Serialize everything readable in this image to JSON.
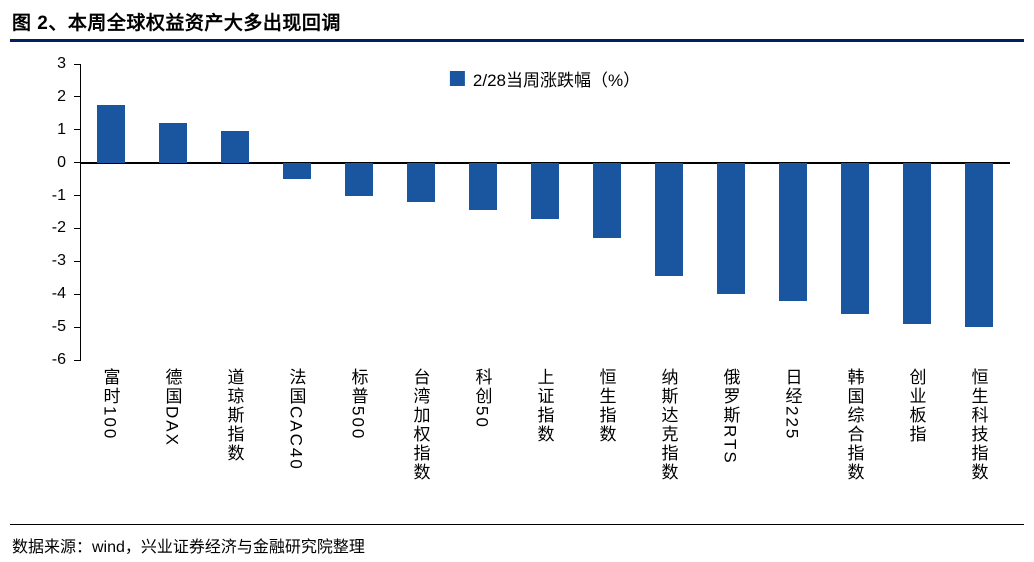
{
  "title": "图 2、本周全球权益资产大多出现回调",
  "footer": "数据来源：wind，兴业证券经济与金融研究院整理",
  "colors": {
    "bar": "#1A56A0",
    "title_rule": "#002060",
    "axis": "#000000"
  },
  "chart_data": {
    "type": "bar",
    "title": "图 2、本周全球权益资产大多出现回调",
    "legend": "2/28当周涨跌幅（%）",
    "legend_position": "top-center",
    "grid": false,
    "categories": [
      "富时100",
      "德国DAX",
      "道琼斯指数",
      "法国CAC40",
      "标普500",
      "台湾加权指数",
      "科创50",
      "上证指数",
      "恒生指数",
      "纳斯达克指数",
      "俄罗斯RTS",
      "日经225",
      "韩国综合指数",
      "创业板指",
      "恒生科技指数"
    ],
    "values": [
      1.75,
      1.2,
      0.95,
      -0.5,
      -1.0,
      -1.2,
      -1.45,
      -1.7,
      -2.3,
      -3.45,
      -4.0,
      -4.2,
      -4.6,
      -4.9,
      -5.0
    ],
    "ylim": [
      -6,
      3
    ],
    "yticks": [
      3,
      2,
      1,
      0,
      -1,
      -2,
      -3,
      -4,
      -5,
      -6
    ],
    "xlabel": "",
    "ylabel": ""
  }
}
